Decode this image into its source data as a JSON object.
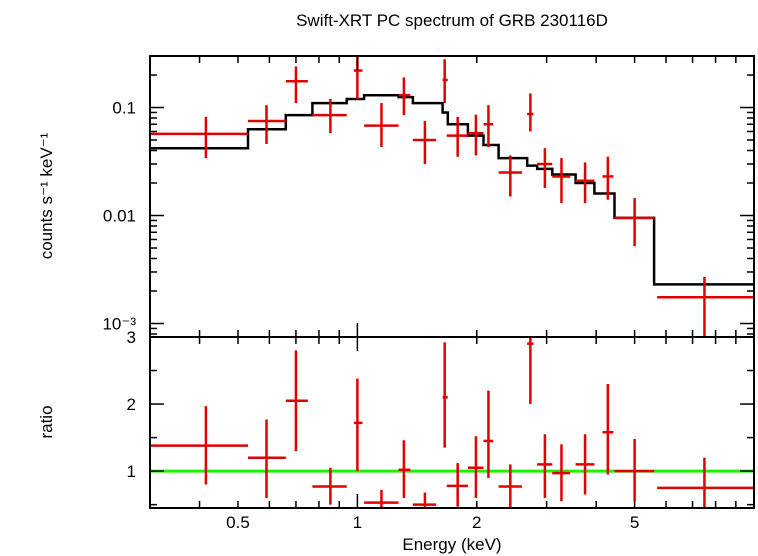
{
  "chart_data": [
    {
      "type": "scatter",
      "title": "Swift-XRT PC spectrum of GRB 230116D",
      "ylabel": "counts s⁻¹ keV⁻¹",
      "xlabel": "",
      "xscale": "log",
      "yscale": "log",
      "xlim": [
        0.3,
        10
      ],
      "ylim": [
        0.00075,
        0.3
      ],
      "y_ticks": [
        {
          "value": 0.1,
          "label": "0.1"
        },
        {
          "value": 0.01,
          "label": "0.01"
        },
        {
          "value": 0.001,
          "label": "10⁻³"
        }
      ],
      "data_color": "#e00000",
      "model_color": "#000000",
      "points": [
        {
          "x": 0.415,
          "xlo": 0.3,
          "xhi": 0.53,
          "y": 0.057,
          "ylo": 0.034,
          "yhi": 0.082
        },
        {
          "x": 0.59,
          "xlo": 0.53,
          "xhi": 0.66,
          "y": 0.075,
          "ylo": 0.046,
          "yhi": 0.105
        },
        {
          "x": 0.7,
          "xlo": 0.66,
          "xhi": 0.75,
          "y": 0.175,
          "ylo": 0.11,
          "yhi": 0.24
        },
        {
          "x": 0.855,
          "xlo": 0.77,
          "xhi": 0.94,
          "y": 0.085,
          "ylo": 0.058,
          "yhi": 0.12
        },
        {
          "x": 1.0,
          "xlo": 0.98,
          "xhi": 1.03,
          "y": 0.22,
          "ylo": 0.12,
          "yhi": 0.3
        },
        {
          "x": 1.15,
          "xlo": 1.04,
          "xhi": 1.27,
          "y": 0.068,
          "ylo": 0.043,
          "yhi": 0.11
        },
        {
          "x": 1.31,
          "xlo": 1.27,
          "xhi": 1.36,
          "y": 0.13,
          "ylo": 0.085,
          "yhi": 0.19
        },
        {
          "x": 1.48,
          "xlo": 1.38,
          "xhi": 1.58,
          "y": 0.05,
          "ylo": 0.03,
          "yhi": 0.075
        },
        {
          "x": 1.66,
          "xlo": 1.64,
          "xhi": 1.69,
          "y": 0.18,
          "ylo": 0.11,
          "yhi": 0.28
        },
        {
          "x": 1.79,
          "xlo": 1.68,
          "xhi": 1.9,
          "y": 0.055,
          "ylo": 0.035,
          "yhi": 0.082
        },
        {
          "x": 1.99,
          "xlo": 1.9,
          "xhi": 2.08,
          "y": 0.058,
          "ylo": 0.036,
          "yhi": 0.086
        },
        {
          "x": 2.14,
          "xlo": 2.08,
          "xhi": 2.2,
          "y": 0.07,
          "ylo": 0.043,
          "yhi": 0.105
        },
        {
          "x": 2.43,
          "xlo": 2.27,
          "xhi": 2.6,
          "y": 0.025,
          "ylo": 0.015,
          "yhi": 0.036
        },
        {
          "x": 2.73,
          "xlo": 2.68,
          "xhi": 2.78,
          "y": 0.087,
          "ylo": 0.06,
          "yhi": 0.135
        },
        {
          "x": 2.97,
          "xlo": 2.84,
          "xhi": 3.1,
          "y": 0.03,
          "ylo": 0.018,
          "yhi": 0.042
        },
        {
          "x": 3.27,
          "xlo": 3.1,
          "xhi": 3.44,
          "y": 0.023,
          "ylo": 0.013,
          "yhi": 0.034
        },
        {
          "x": 3.75,
          "xlo": 3.55,
          "xhi": 3.96,
          "y": 0.021,
          "ylo": 0.013,
          "yhi": 0.031
        },
        {
          "x": 4.28,
          "xlo": 4.15,
          "xhi": 4.42,
          "y": 0.023,
          "ylo": 0.014,
          "yhi": 0.035
        },
        {
          "x": 5.0,
          "xlo": 4.45,
          "xhi": 5.6,
          "y": 0.0095,
          "ylo": 0.0052,
          "yhi": 0.0145
        },
        {
          "x": 7.5,
          "xlo": 5.7,
          "xhi": 10,
          "y": 0.00175,
          "ylo": 0.00075,
          "yhi": 0.0027
        }
      ],
      "model_steps": [
        {
          "xlo": 0.3,
          "xhi": 0.53,
          "y": 0.042
        },
        {
          "xlo": 0.53,
          "xhi": 0.66,
          "y": 0.063
        },
        {
          "xlo": 0.66,
          "xhi": 0.77,
          "y": 0.085
        },
        {
          "xlo": 0.77,
          "xhi": 0.94,
          "y": 0.11
        },
        {
          "xlo": 0.94,
          "xhi": 1.04,
          "y": 0.12
        },
        {
          "xlo": 1.04,
          "xhi": 1.27,
          "y": 0.13
        },
        {
          "xlo": 1.27,
          "xhi": 1.38,
          "y": 0.125
        },
        {
          "xlo": 1.38,
          "xhi": 1.64,
          "y": 0.11
        },
        {
          "xlo": 1.64,
          "xhi": 1.69,
          "y": 0.09
        },
        {
          "xlo": 1.69,
          "xhi": 1.9,
          "y": 0.07
        },
        {
          "xlo": 1.9,
          "xhi": 2.08,
          "y": 0.055
        },
        {
          "xlo": 2.08,
          "xhi": 2.27,
          "y": 0.045
        },
        {
          "xlo": 2.27,
          "xhi": 2.68,
          "y": 0.034
        },
        {
          "xlo": 2.68,
          "xhi": 2.84,
          "y": 0.029
        },
        {
          "xlo": 2.84,
          "xhi": 3.1,
          "y": 0.027
        },
        {
          "xlo": 3.1,
          "xhi": 3.55,
          "y": 0.024
        },
        {
          "xlo": 3.55,
          "xhi": 3.96,
          "y": 0.02
        },
        {
          "xlo": 3.96,
          "xhi": 4.45,
          "y": 0.016
        },
        {
          "xlo": 4.45,
          "xhi": 5.6,
          "y": 0.0095
        },
        {
          "xlo": 5.6,
          "xhi": 10,
          "y": 0.0023
        }
      ]
    },
    {
      "type": "scatter",
      "title": "",
      "ylabel": "ratio",
      "xlabel": "Energy (keV)",
      "xscale": "log",
      "yscale": "linear",
      "xlim": [
        0.3,
        10
      ],
      "ylim": [
        0.45,
        3.0
      ],
      "y_ticks": [
        {
          "value": 1,
          "label": "1"
        },
        {
          "value": 2,
          "label": "2"
        },
        {
          "value": 3,
          "label": "3"
        }
      ],
      "x_ticks": [
        {
          "value": 0.5,
          "label": "0.5"
        },
        {
          "value": 1,
          "label": "1"
        },
        {
          "value": 2,
          "label": "2"
        },
        {
          "value": 5,
          "label": "5"
        }
      ],
      "reference_line": 1,
      "reference_color": "#22ee00",
      "data_color": "#e00000",
      "points": [
        {
          "x": 0.415,
          "xlo": 0.3,
          "xhi": 0.53,
          "y": 1.38,
          "ylo": 0.8,
          "yhi": 1.97
        },
        {
          "x": 0.59,
          "xlo": 0.53,
          "xhi": 0.66,
          "y": 1.2,
          "ylo": 0.6,
          "yhi": 1.77
        },
        {
          "x": 0.7,
          "xlo": 0.66,
          "xhi": 0.75,
          "y": 2.05,
          "ylo": 1.3,
          "yhi": 2.8
        },
        {
          "x": 0.855,
          "xlo": 0.77,
          "xhi": 0.94,
          "y": 0.77,
          "ylo": 0.5,
          "yhi": 1.05
        },
        {
          "x": 1.0,
          "xlo": 0.98,
          "xhi": 1.03,
          "y": 1.72,
          "ylo": 1.0,
          "yhi": 2.38
        },
        {
          "x": 1.15,
          "xlo": 1.04,
          "xhi": 1.27,
          "y": 0.53,
          "ylo": 0.45,
          "yhi": 0.72
        },
        {
          "x": 1.31,
          "xlo": 1.27,
          "xhi": 1.36,
          "y": 1.02,
          "ylo": 0.6,
          "yhi": 1.46
        },
        {
          "x": 1.48,
          "xlo": 1.38,
          "xhi": 1.58,
          "y": 0.5,
          "ylo": 0.45,
          "yhi": 0.68
        },
        {
          "x": 1.66,
          "xlo": 1.64,
          "xhi": 1.69,
          "y": 2.1,
          "ylo": 1.35,
          "yhi": 2.92
        },
        {
          "x": 1.79,
          "xlo": 1.68,
          "xhi": 1.9,
          "y": 0.78,
          "ylo": 0.47,
          "yhi": 1.12
        },
        {
          "x": 1.99,
          "xlo": 1.9,
          "xhi": 2.08,
          "y": 1.05,
          "ylo": 0.6,
          "yhi": 1.52
        },
        {
          "x": 2.14,
          "xlo": 2.08,
          "xhi": 2.2,
          "y": 1.45,
          "ylo": 0.9,
          "yhi": 2.2
        },
        {
          "x": 2.43,
          "xlo": 2.27,
          "xhi": 2.6,
          "y": 0.77,
          "ylo": 0.45,
          "yhi": 1.1
        },
        {
          "x": 2.73,
          "xlo": 2.68,
          "xhi": 2.78,
          "y": 2.9,
          "ylo": 2.0,
          "yhi": 3.0
        },
        {
          "x": 2.97,
          "xlo": 2.84,
          "xhi": 3.1,
          "y": 1.1,
          "ylo": 0.6,
          "yhi": 1.55
        },
        {
          "x": 3.27,
          "xlo": 3.1,
          "xhi": 3.44,
          "y": 0.97,
          "ylo": 0.55,
          "yhi": 1.4
        },
        {
          "x": 3.75,
          "xlo": 3.55,
          "xhi": 3.96,
          "y": 1.1,
          "ylo": 0.65,
          "yhi": 1.55
        },
        {
          "x": 4.28,
          "xlo": 4.15,
          "xhi": 4.42,
          "y": 1.58,
          "ylo": 0.95,
          "yhi": 2.3
        },
        {
          "x": 5.0,
          "xlo": 4.45,
          "xhi": 5.6,
          "y": 1.0,
          "ylo": 0.55,
          "yhi": 1.48
        },
        {
          "x": 7.5,
          "xlo": 5.7,
          "xhi": 10,
          "y": 0.75,
          "ylo": 0.45,
          "yhi": 1.2
        }
      ]
    }
  ]
}
